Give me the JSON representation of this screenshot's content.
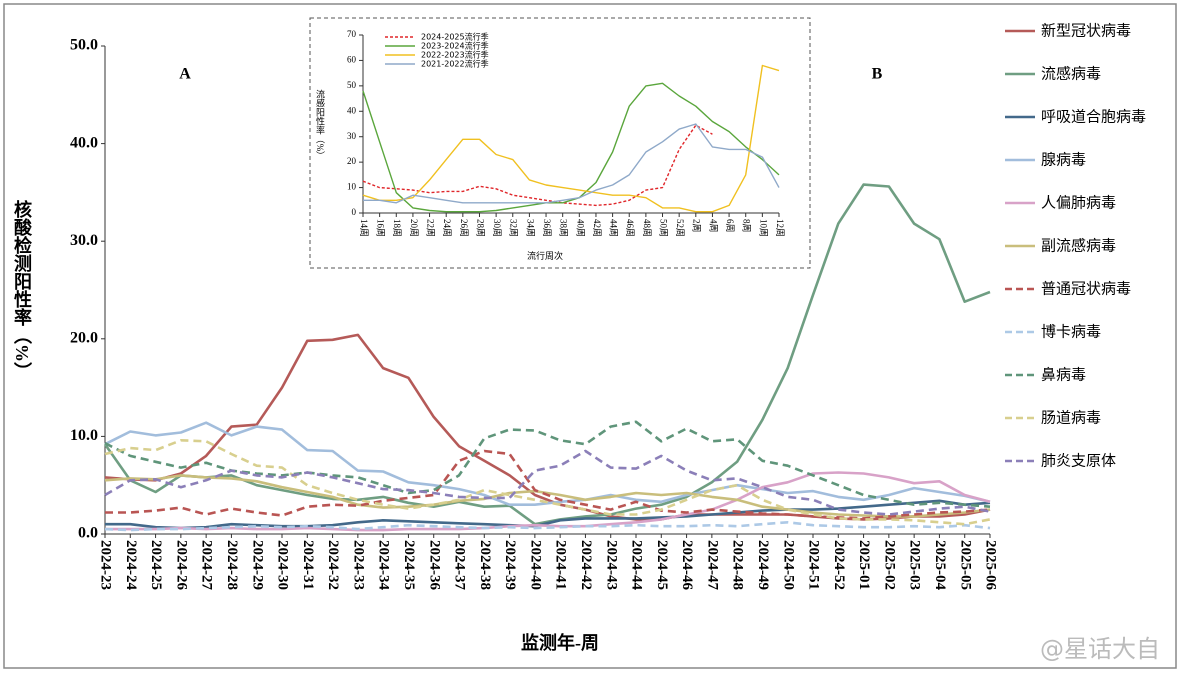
{
  "chart_data": [
    {
      "type": "line",
      "y_label": "核酸检测阳性率（%）",
      "x_label": "监测年-周",
      "annotations": [
        "A",
        "B"
      ],
      "legend": "right",
      "categories": [
        "2024-23",
        "2024-24",
        "2024-25",
        "2024-26",
        "2024-27",
        "2024-28",
        "2024-29",
        "2024-30",
        "2024-31",
        "2024-32",
        "2024-33",
        "2024-34",
        "2024-35",
        "2024-36",
        "2024-37",
        "2024-38",
        "2024-39",
        "2024-40",
        "2024-41",
        "2024-42",
        "2024-43",
        "2024-44",
        "2024-45",
        "2024-46",
        "2024-47",
        "2024-48",
        "2024-49",
        "2024-50",
        "2024-51",
        "2024-52",
        "2025-01",
        "2025-02",
        "2025-03",
        "2025-04",
        "2025-05",
        "2025-06"
      ],
      "ylim": [
        0,
        50
      ],
      "yticks": [
        {
          "value": 0,
          "label": "0.0"
        },
        {
          "value": 10,
          "label": "10.0"
        },
        {
          "value": 20,
          "label": "20.0"
        },
        {
          "value": 30,
          "label": "30.0"
        },
        {
          "value": 40,
          "label": "40.0"
        },
        {
          "value": 50,
          "label": "50.0"
        }
      ],
      "series": [
        {
          "name": "新型冠状病毒",
          "color": "#b55a58",
          "dashed": false,
          "values": [
            5.8,
            5.6,
            5.5,
            6.2,
            8.0,
            11.0,
            11.2,
            15.0,
            19.8,
            19.9,
            20.4,
            17.0,
            16.0,
            12.0,
            9.0,
            7.5,
            6.0,
            4.0,
            3.0,
            2.5,
            1.8,
            1.5,
            1.5,
            2.0,
            2.0,
            2.0,
            2.0,
            2.0,
            1.8,
            1.6,
            1.5,
            1.6,
            1.8,
            1.8,
            2.0,
            2.5
          ]
        },
        {
          "name": "流感病毒",
          "color": "#6f9e82",
          "dashed": false,
          "values": [
            9.2,
            5.5,
            4.3,
            6.0,
            5.8,
            6.0,
            5.0,
            4.5,
            4.0,
            3.6,
            3.5,
            3.8,
            3.2,
            2.8,
            3.3,
            2.8,
            2.9,
            1.0,
            1.5,
            1.8,
            2.0,
            2.6,
            3.0,
            3.8,
            5.3,
            7.4,
            11.7,
            17.0,
            24.5,
            31.8,
            35.8,
            35.6,
            31.8,
            30.2,
            23.8,
            24.8
          ]
        },
        {
          "name": "呼吸道合胞病毒",
          "color": "#43698a",
          "dashed": false,
          "values": [
            1,
            1,
            0.7,
            0.6,
            0.7,
            1,
            0.9,
            0.8,
            0.8,
            0.9,
            1.2,
            1.4,
            1.3,
            1.2,
            1.1,
            1.0,
            0.9,
            0.8,
            1.4,
            1.6,
            1.6,
            1.6,
            1.7,
            1.8,
            2.0,
            2.2,
            2.4,
            2.5,
            2.5,
            2.6,
            2.8,
            3.0,
            3.2,
            3.4,
            3.0,
            3.2
          ]
        },
        {
          "name": "腺病毒",
          "color": "#a2bddc",
          "dashed": false,
          "values": [
            9.2,
            10.5,
            10.1,
            10.4,
            11.4,
            10.1,
            11,
            10.7,
            8.6,
            8.5,
            6.5,
            6.4,
            5.3,
            5.0,
            4.6,
            4.0,
            3.0,
            3.0,
            3.3,
            3.5,
            4.0,
            3.5,
            3.3,
            4.0,
            4.5,
            5.0,
            4.6,
            4.2,
            4.4,
            3.8,
            3.5,
            4.0,
            4.7,
            4.3,
            3.9,
            3.3
          ]
        },
        {
          "name": "人偏肺病毒",
          "color": "#d8a2c8",
          "dashed": false,
          "values": [
            0.5,
            0.5,
            0.5,
            0.6,
            0.5,
            0.6,
            0.5,
            0.5,
            0.6,
            0.5,
            0.4,
            0.4,
            0.5,
            0.5,
            0.5,
            0.6,
            0.8,
            0.9,
            0.8,
            0.8,
            1.0,
            1.2,
            1.5,
            2.0,
            2.5,
            3.5,
            4.8,
            5.3,
            6.2,
            6.3,
            6.2,
            5.8,
            5.2,
            5.4,
            4.0,
            3.3
          ]
        },
        {
          "name": "副流感病毒",
          "color": "#c9be7c",
          "dashed": false,
          "values": [
            5.5,
            5.7,
            5.6,
            6.0,
            5.8,
            5.7,
            5.4,
            4.8,
            4.3,
            3.8,
            3.0,
            2.7,
            2.8,
            3.0,
            3.4,
            3.6,
            4.2,
            4.4,
            4.0,
            3.5,
            3.8,
            4.2,
            4.0,
            4.2,
            3.8,
            3.5,
            2.8,
            2.5,
            2.2,
            2.0,
            1.9,
            1.8,
            1.8,
            2.0,
            2.2,
            2.5
          ]
        },
        {
          "name": "普通冠状病毒",
          "color": "#b95553",
          "dashed": true,
          "values": [
            2.2,
            2.2,
            2.4,
            2.7,
            2.0,
            2.6,
            2.2,
            1.9,
            2.8,
            3.0,
            2.9,
            3.4,
            3.7,
            4.0,
            7.5,
            8.5,
            8.2,
            4.5,
            3.5,
            3.0,
            2.5,
            3.3,
            2.4,
            2.2,
            2.5,
            2.3,
            2.1,
            2.0,
            1.8,
            1.7,
            1.6,
            1.8,
            2.0,
            2.2,
            2.3,
            2.5
          ]
        },
        {
          "name": "博卡病毒",
          "color": "#adc9e6",
          "dashed": true,
          "values": [
            0.5,
            0.4,
            0.5,
            0.5,
            0.6,
            0.7,
            0.8,
            0.7,
            0.8,
            0.7,
            0.5,
            0.7,
            0.9,
            0.8,
            0.7,
            0.6,
            0.7,
            0.6,
            0.7,
            0.8,
            0.8,
            0.9,
            0.8,
            0.8,
            0.9,
            0.8,
            1.0,
            1.2,
            0.9,
            0.8,
            0.7,
            0.7,
            0.8,
            0.7,
            0.9,
            0.6
          ]
        },
        {
          "name": "鼻病毒",
          "color": "#5f957a",
          "dashed": true,
          "values": [
            9.3,
            8.0,
            7.4,
            6.8,
            7.3,
            6.5,
            6.2,
            6.0,
            6.3,
            6.0,
            5.8,
            5.0,
            4.2,
            4.5,
            6.0,
            9.8,
            10.7,
            10.6,
            9.6,
            9.2,
            11.0,
            11.5,
            9.5,
            10.8,
            9.5,
            9.7,
            7.5,
            7.0,
            6.0,
            5.0,
            4.0,
            3.5,
            3.0,
            3.2,
            3.0,
            2.8
          ]
        },
        {
          "name": "肠道病毒",
          "color": "#d8cf8e",
          "dashed": true,
          "values": [
            8.2,
            8.8,
            8.6,
            9.6,
            9.5,
            8.2,
            7.0,
            6.8,
            5.0,
            4.2,
            3.5,
            3.0,
            2.6,
            3.0,
            3.5,
            4.5,
            4.0,
            3.5,
            3.0,
            2.5,
            2.0,
            2.0,
            2.5,
            3.5,
            4.5,
            5.0,
            3.5,
            2.5,
            2.0,
            1.6,
            1.5,
            1.5,
            1.4,
            1.2,
            1.0,
            1.5
          ]
        },
        {
          "name": "肺炎支原体",
          "color": "#8b7fb8",
          "dashed": true,
          "values": [
            4.0,
            5.5,
            5.6,
            4.8,
            5.5,
            6.5,
            6.0,
            5.8,
            6.3,
            5.8,
            5.2,
            4.6,
            4.5,
            4.2,
            3.8,
            3.7,
            3.7,
            6.5,
            7.0,
            8.5,
            6.8,
            6.7,
            8.0,
            6.5,
            5.5,
            5.7,
            4.8,
            3.8,
            3.5,
            2.5,
            2.2,
            2.0,
            2.3,
            2.6,
            2.8,
            2.3
          ]
        }
      ]
    },
    {
      "type": "line",
      "y_label": "流感阳性率（%）",
      "x_label": "流行周次",
      "legend": "upper left",
      "categories": [
        "14周",
        "16周",
        "18周",
        "20周",
        "22周",
        "24周",
        "26周",
        "28周",
        "30周",
        "32周",
        "34周",
        "36周",
        "38周",
        "40周",
        "42周",
        "44周",
        "46周",
        "48周",
        "50周",
        "52周",
        "2周",
        "4周",
        "6周",
        "8周",
        "10周",
        "12周"
      ],
      "ylim": [
        0,
        70
      ],
      "yticks": [
        0,
        10,
        20,
        30,
        40,
        50,
        60,
        70
      ],
      "series": [
        {
          "name": "2024-2025流行季",
          "color": "#e0262a",
          "dashed": true,
          "values": [
            12.5,
            10,
            9.5,
            9,
            8,
            8.5,
            8.5,
            10.5,
            9.5,
            7,
            6,
            5,
            4,
            3.5,
            3,
            3.5,
            5,
            9,
            10,
            25,
            34.5,
            31,
            null,
            null,
            null,
            null
          ]
        },
        {
          "name": "2023-2024流行季",
          "color": "#5aa63c",
          "dashed": false,
          "values": [
            48,
            28,
            8,
            2,
            1,
            0.5,
            0.5,
            0.5,
            1,
            2,
            3,
            4,
            4,
            6,
            12,
            24,
            42,
            50,
            51,
            46,
            42,
            36,
            32,
            26,
            21,
            15
          ]
        },
        {
          "name": "2022-2023流行季",
          "color": "#f0c020",
          "dashed": false,
          "values": [
            7,
            5,
            5,
            6,
            13,
            21,
            29,
            29,
            23,
            21,
            13,
            11,
            10,
            9,
            8,
            7,
            7,
            6,
            2,
            2,
            0.5,
            0.5,
            3,
            15,
            58,
            56
          ]
        },
        {
          "name": "2021-2022流行季",
          "color": "#8fa9c9",
          "dashed": false,
          "values": [
            5,
            5,
            4,
            7,
            6,
            5,
            4,
            4,
            4,
            4,
            4,
            4,
            5,
            6,
            9,
            11,
            15,
            24,
            28,
            33,
            35,
            26,
            25,
            25,
            22,
            10
          ]
        }
      ]
    }
  ],
  "watermark": "@星话大自"
}
